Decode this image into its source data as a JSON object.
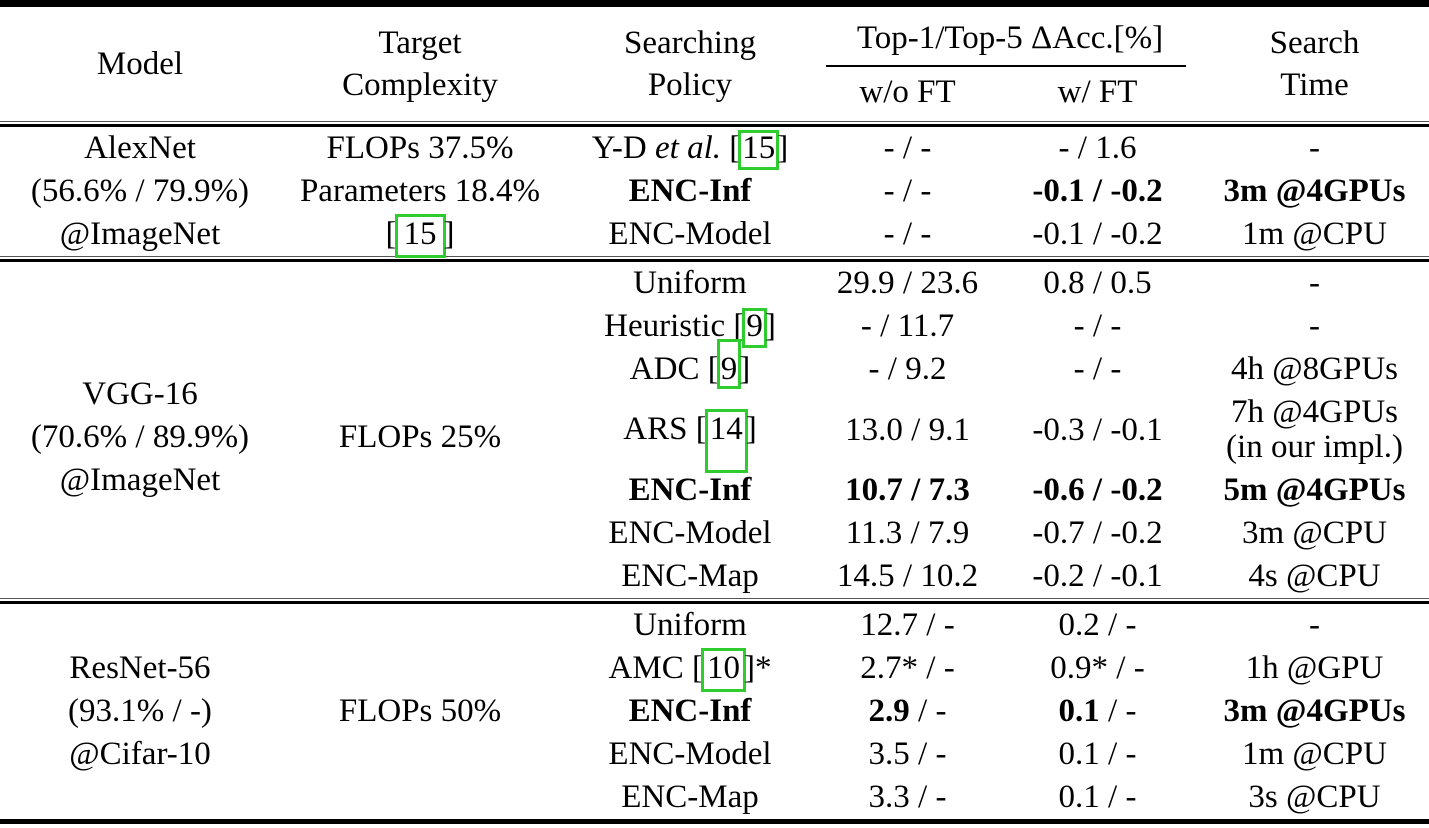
{
  "colors": {
    "text": "#000000",
    "background": "#ffffff",
    "citation_box_green": "#2ecc2e"
  },
  "header": {
    "model": "Model",
    "target_line1": "Target",
    "target_line2": "Complexity",
    "policy_line1": "Searching",
    "policy_line2": "Policy",
    "acc_group": "Top-1/Top-5 ΔAcc.[%]",
    "wo_ft": "w/o FT",
    "w_ft": "w/ FT",
    "time_line1": "Search",
    "time_line2": "Time"
  },
  "groups": [
    {
      "name": "alexnet",
      "model_lines": [
        "AlexNet",
        "(56.6% / 79.9%)",
        "@ImageNet"
      ],
      "target_lines": [
        [
          {
            "t": "FLOPs 37.5%"
          }
        ],
        [
          {
            "t": "Parameters 18.4%"
          }
        ],
        [
          {
            "t": "["
          },
          {
            "t": "15",
            "box": "sq"
          },
          {
            "t": "]"
          }
        ]
      ],
      "rows": [
        {
          "policy": [
            {
              "t": "Y-D "
            },
            {
              "t": "et al.",
              "i": true
            },
            {
              "t": " ["
            },
            {
              "t": "15",
              "box": "norm"
            },
            {
              "t": "]"
            }
          ],
          "wo_ft": [
            {
              "t": "- / -"
            }
          ],
          "w_ft": [
            {
              "t": "- / 1.6"
            }
          ],
          "time": [
            {
              "t": "-"
            }
          ]
        },
        {
          "policy": [
            {
              "t": "ENC-Inf",
              "b": true
            }
          ],
          "wo_ft": [
            {
              "t": "- / -"
            }
          ],
          "w_ft": [
            {
              "t": "-0.1 / -0.2",
              "b": true
            }
          ],
          "time": [
            {
              "t": "3m @4GPUs",
              "b": true
            }
          ]
        },
        {
          "policy": [
            {
              "t": "ENC-Model"
            }
          ],
          "wo_ft": [
            {
              "t": "- / -"
            }
          ],
          "w_ft": [
            {
              "t": "-0.1 / -0.2"
            }
          ],
          "time": [
            {
              "t": "1m @CPU"
            }
          ]
        }
      ]
    },
    {
      "name": "vgg16",
      "model_lines": [
        "VGG-16",
        "(70.6% / 89.9%)",
        "@ImageNet"
      ],
      "target_lines": [
        [
          {
            "t": "FLOPs 25%"
          }
        ]
      ],
      "rows": [
        {
          "policy": [
            {
              "t": "Uniform"
            }
          ],
          "wo_ft": [
            {
              "t": "29.9 / 23.6"
            }
          ],
          "w_ft": [
            {
              "t": "0.8 / 0.5"
            }
          ],
          "time": [
            {
              "t": "-"
            }
          ]
        },
        {
          "policy": [
            {
              "t": "Heuristic ["
            },
            {
              "t": "9",
              "box": "norm"
            },
            {
              "t": "]"
            }
          ],
          "wo_ft": [
            {
              "t": "- / 11.7"
            }
          ],
          "w_ft": [
            {
              "t": "- / -"
            }
          ],
          "time": [
            {
              "t": "-"
            }
          ]
        },
        {
          "policy": [
            {
              "t": "ADC ["
            },
            {
              "t": "9",
              "box": "up"
            },
            {
              "t": "]"
            }
          ],
          "wo_ft": [
            {
              "t": "- / 9.2"
            }
          ],
          "w_ft": [
            {
              "t": "- / -"
            }
          ],
          "time": [
            {
              "t": "4h @8GPUs"
            }
          ]
        },
        {
          "tall": true,
          "policy": [
            {
              "t": "ARS ["
            },
            {
              "t": "14",
              "box": "tall"
            },
            {
              "t": "]"
            }
          ],
          "wo_ft": [
            {
              "t": "13.0 / 9.1"
            }
          ],
          "w_ft": [
            {
              "t": "-0.3 / -0.1"
            }
          ],
          "time": [
            {
              "t": "7h @4GPUs"
            },
            {
              "t": "(in our impl.)",
              "nl": true
            }
          ]
        },
        {
          "policy": [
            {
              "t": "ENC-Inf",
              "b": true
            }
          ],
          "wo_ft": [
            {
              "t": "10.7 / 7.3",
              "b": true
            }
          ],
          "w_ft": [
            {
              "t": "-0.6 / -0.2",
              "b": true
            }
          ],
          "time": [
            {
              "t": "5m @4GPUs",
              "b": true
            }
          ]
        },
        {
          "policy": [
            {
              "t": "ENC-Model"
            }
          ],
          "wo_ft": [
            {
              "t": "11.3 / 7.9"
            }
          ],
          "w_ft": [
            {
              "t": "-0.7 / -0.2"
            }
          ],
          "time": [
            {
              "t": "3m @CPU"
            }
          ]
        },
        {
          "policy": [
            {
              "t": "ENC-Map"
            }
          ],
          "wo_ft": [
            {
              "t": "14.5 / 10.2"
            }
          ],
          "w_ft": [
            {
              "t": "-0.2 / -0.1"
            }
          ],
          "time": [
            {
              "t": "4s @CPU"
            }
          ]
        }
      ]
    },
    {
      "name": "resnet56",
      "model_lines": [
        "ResNet-56",
        "(93.1% / -)",
        "@Cifar-10"
      ],
      "target_lines": [
        [
          {
            "t": "FLOPs 50%"
          }
        ]
      ],
      "rows": [
        {
          "policy": [
            {
              "t": "Uniform"
            }
          ],
          "wo_ft": [
            {
              "t": "12.7 / -"
            }
          ],
          "w_ft": [
            {
              "t": "0.2 / -"
            }
          ],
          "time": [
            {
              "t": "-"
            }
          ]
        },
        {
          "policy": [
            {
              "t": "AMC ["
            },
            {
              "t": "10",
              "box": "amc"
            },
            {
              "t": "]*"
            }
          ],
          "wo_ft": [
            {
              "t": "2.7* / -"
            }
          ],
          "w_ft": [
            {
              "t": "0.9* / -"
            }
          ],
          "time": [
            {
              "t": "1h @GPU"
            }
          ]
        },
        {
          "policy": [
            {
              "t": "ENC-Inf",
              "b": true
            }
          ],
          "wo_ft": [
            {
              "t": "2.9",
              "b": true
            },
            {
              "t": " / -"
            }
          ],
          "w_ft": [
            {
              "t": "0.1",
              "b": true
            },
            {
              "t": " / -"
            }
          ],
          "time": [
            {
              "t": "3m @4GPUs",
              "b": true
            }
          ]
        },
        {
          "policy": [
            {
              "t": "ENC-Model"
            }
          ],
          "wo_ft": [
            {
              "t": "3.5 / -"
            }
          ],
          "w_ft": [
            {
              "t": "0.1 / -"
            }
          ],
          "time": [
            {
              "t": "1m @CPU"
            }
          ]
        },
        {
          "policy": [
            {
              "t": "ENC-Map"
            }
          ],
          "wo_ft": [
            {
              "t": "3.3 / -"
            }
          ],
          "w_ft": [
            {
              "t": "0.1 / -"
            }
          ],
          "time": [
            {
              "t": "3s @CPU"
            }
          ]
        }
      ]
    }
  ]
}
